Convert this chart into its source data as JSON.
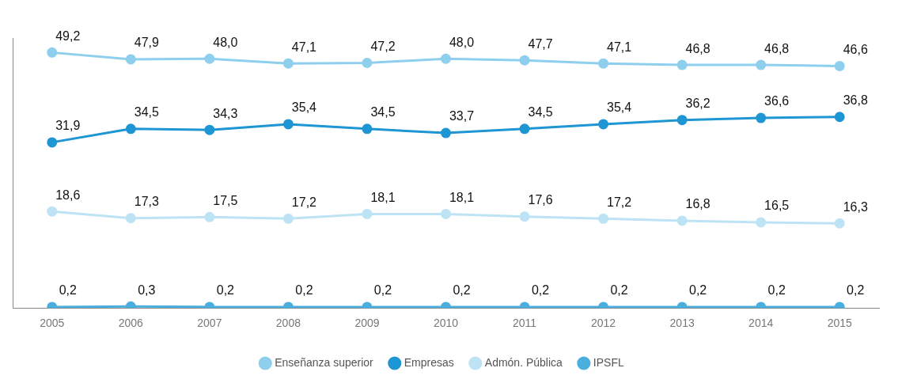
{
  "chart_data": {
    "type": "line",
    "categories": [
      "2005",
      "2006",
      "2007",
      "2008",
      "2009",
      "2010",
      "2011",
      "2012",
      "2013",
      "2014",
      "2015"
    ],
    "ylim": [
      0,
      52
    ],
    "tick_labels": "x",
    "grid": false,
    "legend": "bottom",
    "marker": "circle",
    "line_style": "solid",
    "series": [
      {
        "name": "Enseñanza superior",
        "color": "#8ecfee",
        "values": [
          49.2,
          47.9,
          48.0,
          47.1,
          47.2,
          48.0,
          47.7,
          47.1,
          46.8,
          46.8,
          46.6
        ],
        "value_labels": [
          "49,2",
          "47,9",
          "48,0",
          "47,1",
          "47,2",
          "48,0",
          "47,7",
          "47,1",
          "46,8",
          "46,8",
          "46,6"
        ]
      },
      {
        "name": "Empresas",
        "color": "#1e96d4",
        "values": [
          31.9,
          34.5,
          34.3,
          35.4,
          34.5,
          33.7,
          34.5,
          35.4,
          36.2,
          36.6,
          36.8
        ],
        "value_labels": [
          "31,9",
          "34,5",
          "34,3",
          "35,4",
          "34,5",
          "33,7",
          "34,5",
          "35,4",
          "36,2",
          "36,6",
          "36,8"
        ]
      },
      {
        "name": "Admón. Pública",
        "color": "#bde3f5",
        "values": [
          18.6,
          17.3,
          17.5,
          17.2,
          18.1,
          18.1,
          17.6,
          17.2,
          16.8,
          16.5,
          16.3
        ],
        "value_labels": [
          "18,6",
          "17,3",
          "17,5",
          "17,2",
          "18,1",
          "18,1",
          "17,6",
          "17,2",
          "16,8",
          "16,5",
          "16,3"
        ]
      },
      {
        "name": "IPSFL",
        "color": "#4aaedf",
        "values": [
          0.2,
          0.3,
          0.2,
          0.2,
          0.2,
          0.2,
          0.2,
          0.2,
          0.2,
          0.2,
          0.2
        ],
        "value_labels": [
          "0,2",
          "0,3",
          "0,2",
          "0,2",
          "0,2",
          "0,2",
          "0,2",
          "0,2",
          "0,2",
          "0,2",
          "0,2"
        ]
      }
    ]
  }
}
